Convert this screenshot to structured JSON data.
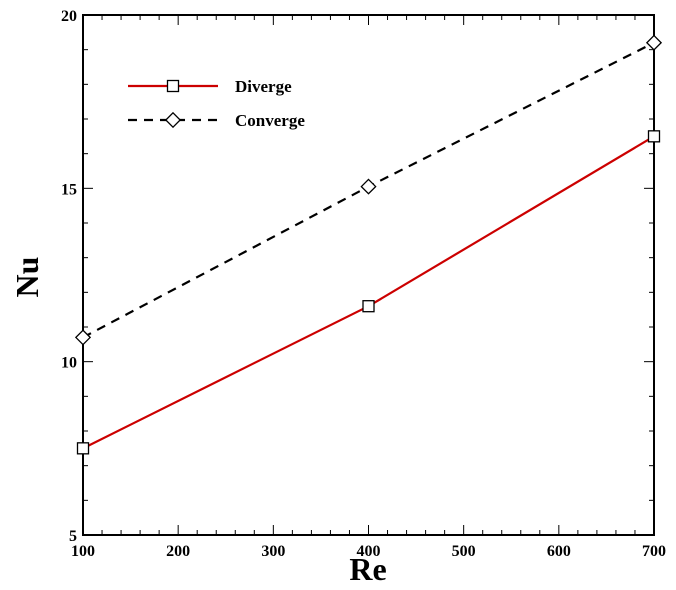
{
  "chart_data": {
    "type": "line",
    "xlabel": "Re",
    "ylabel": "Nu",
    "xlim": [
      100,
      700
    ],
    "ylim": [
      5,
      20
    ],
    "x_ticks": [
      100,
      200,
      300,
      400,
      500,
      600,
      700
    ],
    "y_ticks": [
      5,
      10,
      15,
      20
    ],
    "grid": false,
    "legend_position": "top-left",
    "series": [
      {
        "name": "Diverge",
        "x": [
          100,
          400,
          700
        ],
        "y": [
          7.5,
          11.6,
          16.5
        ],
        "color": "#cc0000",
        "line_style": "solid",
        "marker": "square"
      },
      {
        "name": "Converge",
        "x": [
          100,
          400,
          700
        ],
        "y": [
          10.7,
          15.05,
          19.2
        ],
        "color": "#000000",
        "line_style": "dashed",
        "marker": "diamond"
      }
    ]
  }
}
